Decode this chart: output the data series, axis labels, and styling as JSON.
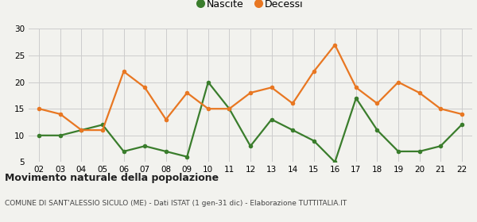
{
  "years": [
    "02",
    "03",
    "04",
    "05",
    "06",
    "07",
    "08",
    "09",
    "10",
    "11",
    "12",
    "13",
    "14",
    "15",
    "16",
    "17",
    "18",
    "19",
    "20",
    "21",
    "22"
  ],
  "nascite": [
    10,
    10,
    11,
    12,
    7,
    8,
    7,
    6,
    20,
    15,
    8,
    13,
    11,
    9,
    5,
    17,
    11,
    7,
    7,
    8,
    12
  ],
  "decessi": [
    15,
    14,
    11,
    11,
    22,
    19,
    13,
    18,
    15,
    15,
    18,
    19,
    16,
    22,
    27,
    19,
    16,
    20,
    18,
    15,
    14
  ],
  "nascite_color": "#3a7d2c",
  "decessi_color": "#e87722",
  "title": "Movimento naturale della popolazione",
  "subtitle": "COMUNE DI SANT'ALESSIO SICULO (ME) - Dati ISTAT (1 gen-31 dic) - Elaborazione TUTTITALIA.IT",
  "legend_nascite": "Nascite",
  "legend_decessi": "Decessi",
  "ylim": [
    5,
    30
  ],
  "yticks": [
    5,
    10,
    15,
    20,
    25,
    30
  ],
  "bg_color": "#f2f2ee",
  "grid_color": "#cccccc",
  "marker": "o",
  "marker_size": 4,
  "linewidth": 1.6,
  "title_fontsize": 9,
  "subtitle_fontsize": 6.5,
  "tick_fontsize": 7.5,
  "legend_fontsize": 9
}
